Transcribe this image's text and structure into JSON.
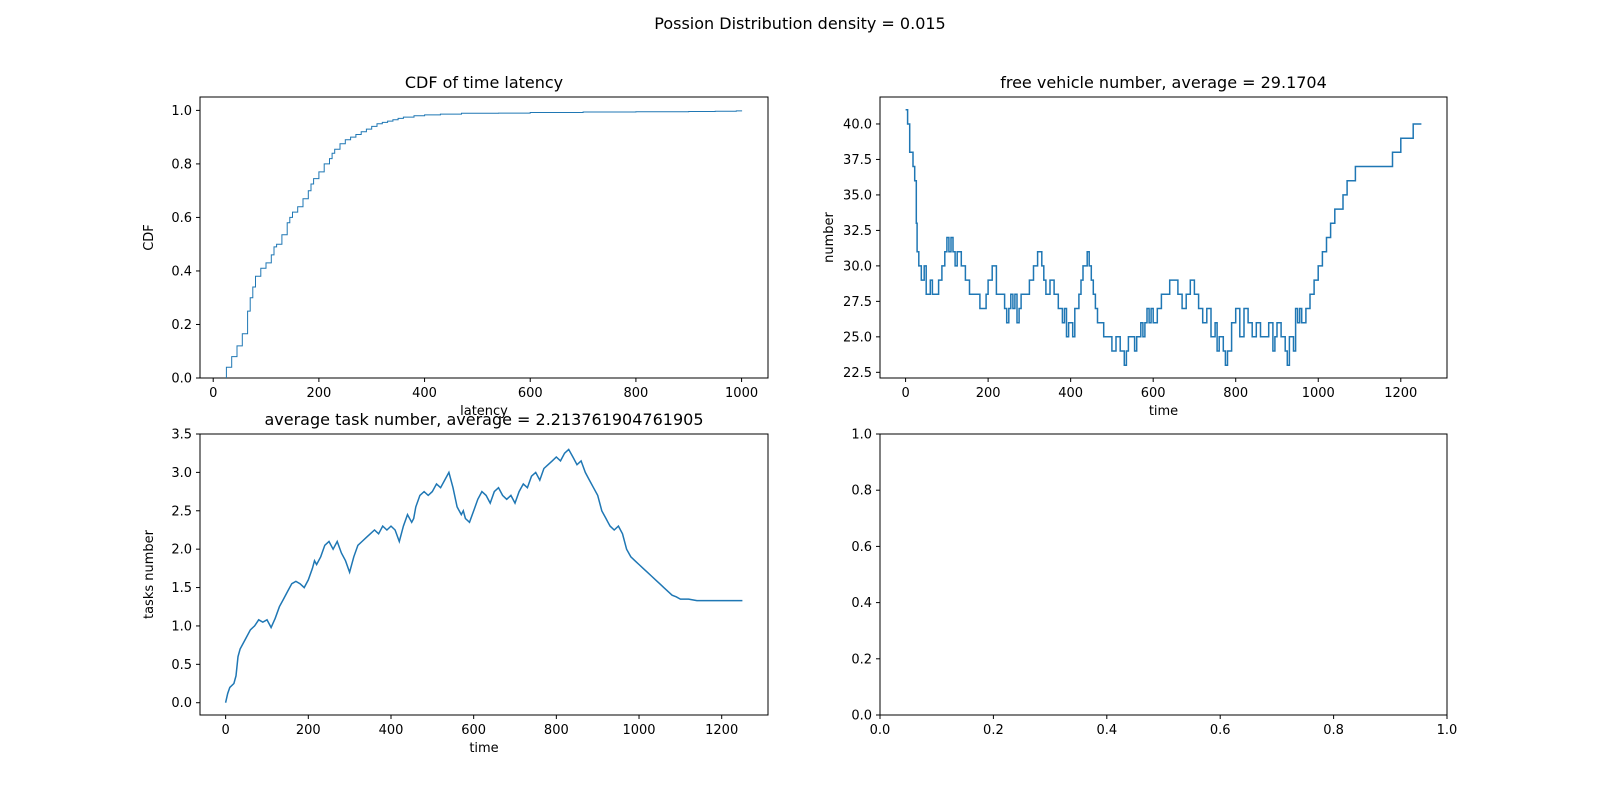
{
  "figure": {
    "suptitle": "Possion Distribution density = 0.015"
  },
  "chart_data": [
    {
      "id": "cdf",
      "type": "line",
      "step": true,
      "title": "CDF of time latency",
      "xlabel": "latency",
      "ylabel": "CDF",
      "xlim": [
        -25,
        1050
      ],
      "ylim": [
        0,
        1.05
      ],
      "xticks": [
        0,
        200,
        400,
        600,
        800,
        1000
      ],
      "xtick_labels": [
        "0",
        "200",
        "400",
        "600",
        "800",
        "1000"
      ],
      "yticks": [
        0,
        0.2,
        0.4,
        0.6,
        0.8,
        1.0
      ],
      "ytick_labels": [
        "0.0",
        "0.2",
        "0.4",
        "0.6",
        "0.8",
        "1.0"
      ],
      "color": "#1f77b4",
      "series": [
        {
          "x": [
            25,
            25,
            35,
            45,
            55,
            65,
            70,
            75,
            80,
            90,
            100,
            110,
            115,
            120,
            130,
            140,
            145,
            150,
            160,
            170,
            180,
            185,
            190,
            200,
            210,
            220,
            225,
            230,
            240,
            250,
            260,
            270,
            280,
            290,
            300,
            310,
            320,
            330,
            340,
            350,
            360,
            380,
            400,
            430,
            470,
            540,
            600,
            700,
            800,
            900,
            950,
            990,
            1000
          ],
          "y": [
            0,
            0.04,
            0.08,
            0.12,
            0.165,
            0.25,
            0.3,
            0.34,
            0.38,
            0.41,
            0.43,
            0.46,
            0.49,
            0.5,
            0.535,
            0.58,
            0.6,
            0.62,
            0.64,
            0.67,
            0.7,
            0.725,
            0.745,
            0.77,
            0.8,
            0.82,
            0.84,
            0.855,
            0.875,
            0.89,
            0.9,
            0.91,
            0.92,
            0.93,
            0.94,
            0.95,
            0.955,
            0.96,
            0.965,
            0.97,
            0.975,
            0.98,
            0.983,
            0.986,
            0.989,
            0.99,
            0.992,
            0.994,
            0.995,
            0.996,
            0.997,
            0.998,
            1.0
          ]
        }
      ]
    },
    {
      "id": "free_vehicle",
      "type": "line",
      "step": true,
      "title": "free vehicle number, average = 29.1704",
      "xlabel": "time",
      "ylabel": "number",
      "xlim": [
        -62,
        1312
      ],
      "ylim": [
        22.1,
        41.9
      ],
      "xticks": [
        0,
        200,
        400,
        600,
        800,
        1000,
        1200
      ],
      "xtick_labels": [
        "0",
        "200",
        "400",
        "600",
        "800",
        "1000",
        "1200"
      ],
      "yticks": [
        22.5,
        25.0,
        27.5,
        30.0,
        32.5,
        35.0,
        37.5,
        40.0
      ],
      "ytick_labels": [
        "22.5",
        "25.0",
        "27.5",
        "30.0",
        "32.5",
        "35.0",
        "37.5",
        "40.0"
      ],
      "color": "#1f77b4",
      "series": [
        {
          "x": [
            0,
            5,
            10,
            18,
            22,
            26,
            28,
            32,
            38,
            45,
            50,
            55,
            60,
            65,
            72,
            80,
            88,
            95,
            100,
            105,
            110,
            115,
            120,
            125,
            135,
            145,
            155,
            165,
            180,
            195,
            200,
            210,
            220,
            240,
            245,
            250,
            255,
            260,
            265,
            270,
            275,
            280,
            290,
            300,
            310,
            320,
            330,
            335,
            340,
            350,
            360,
            370,
            375,
            380,
            385,
            390,
            395,
            400,
            405,
            410,
            420,
            425,
            430,
            440,
            445,
            450,
            455,
            460,
            465,
            470,
            480,
            490,
            500,
            510,
            520,
            530,
            535,
            540,
            550,
            555,
            560,
            570,
            575,
            580,
            585,
            590,
            595,
            600,
            610,
            620,
            630,
            640,
            650,
            660,
            670,
            680,
            690,
            700,
            710,
            720,
            730,
            740,
            750,
            755,
            760,
            770,
            775,
            780,
            790,
            800,
            810,
            820,
            830,
            840,
            850,
            860,
            870,
            880,
            890,
            895,
            900,
            910,
            920,
            925,
            930,
            940,
            945,
            950,
            955,
            960,
            970,
            980,
            990,
            1000,
            1005,
            1010,
            1020,
            1030,
            1040,
            1050,
            1060,
            1070,
            1080,
            1090,
            1100,
            1110,
            1130,
            1160,
            1180,
            1190,
            1200,
            1210,
            1220,
            1230,
            1240,
            1250
          ],
          "y": [
            41,
            40,
            38,
            37,
            36,
            33,
            31,
            30,
            29,
            30,
            28,
            28,
            29,
            28,
            28,
            29,
            30,
            31,
            32,
            31,
            32,
            31,
            30,
            31,
            30,
            29,
            28,
            28,
            27,
            28,
            29,
            30,
            28,
            27,
            26,
            27,
            28,
            27,
            28,
            26,
            27,
            28,
            28,
            29,
            30,
            31,
            30,
            29,
            28,
            29,
            28,
            27,
            27,
            26,
            27,
            25,
            26,
            26,
            25,
            27,
            28,
            29,
            30,
            31,
            30,
            29,
            28,
            27,
            26,
            26,
            25,
            25,
            24,
            25,
            24,
            23,
            24,
            25,
            25,
            24,
            25,
            26,
            25,
            26,
            27,
            26,
            27,
            26,
            27,
            28,
            28,
            29,
            29,
            28,
            27,
            28,
            29,
            28,
            27,
            26,
            27,
            25,
            26,
            24,
            25,
            24,
            23,
            24,
            26,
            27,
            25,
            27,
            26,
            25,
            26,
            25,
            25,
            26,
            24,
            25,
            26,
            25,
            24,
            23,
            25,
            24,
            27,
            26,
            27,
            26,
            27,
            28,
            29,
            30,
            30,
            31,
            32,
            33,
            34,
            34,
            35,
            36,
            36,
            37,
            37,
            37,
            37,
            37,
            38,
            38,
            39,
            39,
            39,
            40,
            40,
            40
          ]
        }
      ]
    },
    {
      "id": "task_number",
      "type": "line",
      "step": false,
      "title": "average task number, average = 2.213761904761905",
      "xlabel": "time",
      "ylabel": "tasks number",
      "xlim": [
        -62,
        1312
      ],
      "ylim": [
        -0.16,
        3.5
      ],
      "xticks": [
        0,
        200,
        400,
        600,
        800,
        1000,
        1200
      ],
      "xtick_labels": [
        "0",
        "200",
        "400",
        "600",
        "800",
        "1000",
        "1200"
      ],
      "yticks": [
        0,
        0.5,
        1.0,
        1.5,
        2.0,
        2.5,
        3.0,
        3.5
      ],
      "ytick_labels": [
        "0.0",
        "0.5",
        "1.0",
        "1.5",
        "2.0",
        "2.5",
        "3.0",
        "3.5"
      ],
      "color": "#1f77b4",
      "series": [
        {
          "x": [
            0,
            5,
            10,
            20,
            25,
            30,
            35,
            40,
            50,
            60,
            70,
            80,
            90,
            100,
            110,
            120,
            130,
            140,
            150,
            160,
            170,
            180,
            190,
            200,
            210,
            215,
            220,
            230,
            240,
            250,
            260,
            270,
            280,
            290,
            300,
            310,
            320,
            330,
            340,
            350,
            360,
            370,
            380,
            390,
            400,
            410,
            420,
            430,
            440,
            450,
            455,
            460,
            470,
            480,
            490,
            500,
            510,
            520,
            530,
            540,
            550,
            560,
            570,
            575,
            580,
            590,
            600,
            610,
            620,
            630,
            640,
            650,
            660,
            670,
            680,
            690,
            700,
            710,
            720,
            730,
            740,
            750,
            760,
            770,
            780,
            790,
            800,
            810,
            820,
            830,
            840,
            850,
            860,
            870,
            880,
            890,
            900,
            910,
            920,
            925,
            930,
            940,
            950,
            960,
            970,
            980,
            990,
            1000,
            1010,
            1020,
            1030,
            1040,
            1050,
            1060,
            1070,
            1080,
            1090,
            1100,
            1120,
            1140,
            1160,
            1170,
            1180,
            1190,
            1200,
            1210,
            1220,
            1230,
            1240,
            1250
          ],
          "y": [
            0,
            0.12,
            0.2,
            0.25,
            0.35,
            0.6,
            0.7,
            0.75,
            0.85,
            0.95,
            1.0,
            1.08,
            1.05,
            1.08,
            0.98,
            1.1,
            1.25,
            1.35,
            1.45,
            1.55,
            1.58,
            1.55,
            1.5,
            1.6,
            1.75,
            1.85,
            1.8,
            1.9,
            2.05,
            2.1,
            2.0,
            2.1,
            1.95,
            1.85,
            1.7,
            1.9,
            2.05,
            2.1,
            2.15,
            2.2,
            2.25,
            2.2,
            2.3,
            2.25,
            2.3,
            2.25,
            2.1,
            2.3,
            2.45,
            2.35,
            2.4,
            2.55,
            2.7,
            2.75,
            2.7,
            2.75,
            2.85,
            2.8,
            2.9,
            3.0,
            2.8,
            2.55,
            2.45,
            2.5,
            2.4,
            2.35,
            2.5,
            2.65,
            2.75,
            2.7,
            2.6,
            2.75,
            2.8,
            2.7,
            2.65,
            2.7,
            2.6,
            2.75,
            2.85,
            2.8,
            2.95,
            3.0,
            2.9,
            3.05,
            3.1,
            3.15,
            3.2,
            3.15,
            3.25,
            3.3,
            3.2,
            3.1,
            3.15,
            3.0,
            2.9,
            2.8,
            2.7,
            2.5,
            2.4,
            2.35,
            2.3,
            2.25,
            2.3,
            2.2,
            2.0,
            1.9,
            1.85,
            1.8,
            1.75,
            1.7,
            1.65,
            1.6,
            1.55,
            1.5,
            1.45,
            1.4,
            1.38,
            1.35,
            1.35,
            1.33,
            1.33,
            1.33,
            1.33,
            1.33,
            1.33,
            1.33,
            1.33,
            1.33,
            1.33,
            1.33
          ]
        }
      ]
    },
    {
      "id": "empty",
      "type": "line",
      "step": false,
      "title": "",
      "xlabel": "",
      "ylabel": "",
      "xlim": [
        0,
        1
      ],
      "ylim": [
        0,
        1
      ],
      "xticks": [
        0,
        0.2,
        0.4,
        0.6,
        0.8,
        1.0
      ],
      "xtick_labels": [
        "0.0",
        "0.2",
        "0.4",
        "0.6",
        "0.8",
        "1.0"
      ],
      "yticks": [
        0,
        0.2,
        0.4,
        0.6,
        0.8,
        1.0
      ],
      "ytick_labels": [
        "0.0",
        "0.2",
        "0.4",
        "0.6",
        "0.8",
        "1.0"
      ],
      "color": "#1f77b4",
      "series": []
    }
  ]
}
